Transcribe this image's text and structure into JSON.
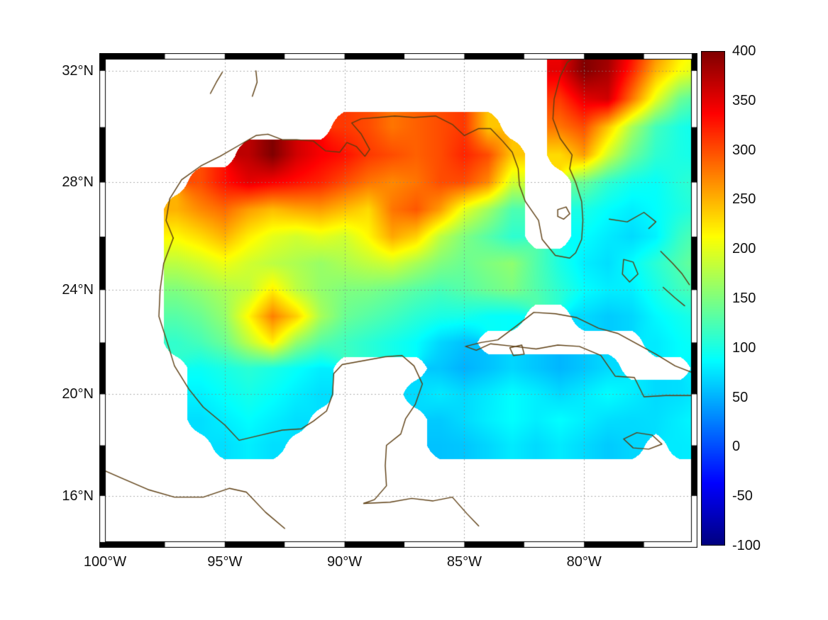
{
  "figure": {
    "background": "#ffffff",
    "frame_color": "#000000",
    "grid_color": "#828282",
    "coast_color": "#5c3d11"
  },
  "axes": {
    "lon_range": [
      -100,
      -75.5
    ],
    "lat_range": [
      14.2,
      32.4
    ],
    "x_ticks": [
      {
        "value": -100,
        "label": "100°W"
      },
      {
        "value": -95,
        "label": "95°W"
      },
      {
        "value": -90,
        "label": "90°W"
      },
      {
        "value": -85,
        "label": "85°W"
      },
      {
        "value": -80,
        "label": "80°W"
      }
    ],
    "y_ticks": [
      {
        "value": 32,
        "label": "32°N"
      },
      {
        "value": 28,
        "label": "28°N"
      },
      {
        "value": 24,
        "label": "24°N"
      },
      {
        "value": 20,
        "label": "20°N"
      },
      {
        "value": 16,
        "label": "16°N"
      }
    ]
  },
  "colorbar": {
    "min": -100,
    "max": 400,
    "colormap": "jet",
    "stops": [
      [
        0,
        0,
        0,
        128
      ],
      [
        0.125,
        0,
        0,
        255
      ],
      [
        0.375,
        0,
        255,
        255
      ],
      [
        0.625,
        255,
        255,
        0
      ],
      [
        0.875,
        255,
        0,
        0
      ],
      [
        1,
        128,
        0,
        0
      ]
    ],
    "tick_values": [
      400,
      350,
      300,
      250,
      200,
      150,
      100,
      50,
      0,
      -50,
      -100
    ],
    "tick_labels": [
      "400",
      "350",
      "300",
      "250",
      "200",
      "150",
      "100",
      "50",
      "0",
      "-50",
      "-100"
    ]
  },
  "chart_data": {
    "type": "heatmap",
    "region": "Gulf of Mexico, Caribbean and western North Atlantic",
    "value_range": [
      -100,
      400
    ],
    "lon": [
      -100,
      -99,
      -98,
      -97,
      -96,
      -95,
      -94,
      -93,
      -92,
      -91,
      -90,
      -89,
      -88,
      -87,
      -86,
      -85,
      -84,
      -83,
      -82,
      -81,
      -80,
      -79,
      -78,
      -77,
      -76,
      -75
    ],
    "lat": [
      33,
      32,
      31,
      30,
      29,
      28,
      27,
      26,
      25,
      24,
      23,
      22,
      21,
      20,
      19,
      18,
      17,
      16,
      15
    ],
    "values": [
      [
        null,
        null,
        null,
        null,
        null,
        null,
        null,
        null,
        null,
        null,
        null,
        null,
        null,
        null,
        null,
        null,
        null,
        null,
        null,
        340,
        400,
        390,
        340,
        280,
        230,
        210
      ],
      [
        null,
        null,
        null,
        null,
        null,
        null,
        null,
        null,
        null,
        null,
        null,
        null,
        null,
        null,
        null,
        null,
        null,
        null,
        null,
        350,
        400,
        380,
        320,
        250,
        210,
        190
      ],
      [
        null,
        null,
        null,
        null,
        null,
        null,
        null,
        null,
        null,
        null,
        null,
        null,
        null,
        null,
        null,
        null,
        null,
        null,
        null,
        310,
        350,
        360,
        280,
        200,
        140,
        120
      ],
      [
        null,
        null,
        null,
        null,
        null,
        null,
        null,
        null,
        null,
        null,
        310,
        300,
        280,
        290,
        300,
        310,
        240,
        null,
        null,
        280,
        300,
        240,
        170,
        120,
        100,
        90
      ],
      [
        null,
        null,
        null,
        null,
        null,
        null,
        370,
        400,
        360,
        340,
        330,
        310,
        300,
        290,
        300,
        320,
        300,
        240,
        null,
        230,
        260,
        190,
        140,
        110,
        100,
        95
      ],
      [
        null,
        null,
        null,
        null,
        300,
        330,
        350,
        340,
        330,
        320,
        300,
        280,
        270,
        280,
        300,
        300,
        270,
        190,
        null,
        null,
        140,
        110,
        95,
        90,
        105,
        115
      ],
      [
        null,
        null,
        null,
        250,
        270,
        285,
        260,
        245,
        255,
        260,
        245,
        230,
        280,
        295,
        260,
        200,
        165,
        125,
        null,
        null,
        100,
        88,
        80,
        88,
        100,
        110
      ],
      [
        null,
        null,
        null,
        215,
        230,
        250,
        220,
        200,
        190,
        200,
        190,
        215,
        255,
        235,
        180,
        150,
        130,
        110,
        null,
        null,
        88,
        78,
        70,
        82,
        115,
        135
      ],
      [
        null,
        null,
        null,
        180,
        190,
        205,
        190,
        180,
        172,
        162,
        172,
        182,
        190,
        170,
        150,
        140,
        150,
        158,
        128,
        100,
        80,
        72,
        88,
        108,
        128,
        148
      ],
      [
        null,
        null,
        null,
        150,
        160,
        172,
        182,
        220,
        180,
        160,
        150,
        148,
        140,
        130,
        122,
        130,
        140,
        148,
        128,
        108,
        88,
        80,
        80,
        98,
        118,
        128
      ],
      [
        null,
        null,
        null,
        130,
        140,
        160,
        215,
        275,
        235,
        170,
        140,
        130,
        120,
        108,
        100,
        98,
        90,
        88,
        null,
        null,
        70,
        62,
        68,
        85,
        95,
        105
      ],
      [
        null,
        null,
        null,
        112,
        122,
        140,
        180,
        220,
        160,
        130,
        118,
        108,
        98,
        88,
        68,
        58,
        null,
        null,
        null,
        null,
        null,
        null,
        null,
        78,
        88,
        95
      ],
      [
        null,
        null,
        null,
        null,
        92,
        100,
        108,
        100,
        90,
        80,
        null,
        null,
        null,
        null,
        60,
        50,
        58,
        68,
        60,
        52,
        60,
        70,
        null,
        null,
        null,
        80
      ],
      [
        null,
        null,
        null,
        null,
        82,
        90,
        98,
        90,
        80,
        72,
        null,
        null,
        null,
        70,
        78,
        70,
        78,
        88,
        80,
        70,
        78,
        88,
        80,
        70,
        72,
        80
      ],
      [
        null,
        null,
        null,
        null,
        72,
        80,
        88,
        80,
        72,
        null,
        null,
        null,
        null,
        null,
        62,
        70,
        80,
        88,
        80,
        88,
        80,
        72,
        70,
        72,
        80,
        88
      ],
      [
        null,
        null,
        null,
        null,
        null,
        72,
        80,
        72,
        null,
        null,
        null,
        null,
        null,
        null,
        58,
        60,
        68,
        78,
        70,
        78,
        70,
        62,
        68,
        null,
        78,
        80
      ],
      [
        null,
        null,
        null,
        null,
        null,
        null,
        null,
        null,
        null,
        null,
        null,
        null,
        null,
        null,
        null,
        null,
        null,
        null,
        null,
        null,
        null,
        null,
        null,
        null,
        null,
        null
      ],
      [
        null,
        null,
        null,
        null,
        null,
        null,
        null,
        null,
        null,
        null,
        null,
        null,
        null,
        null,
        null,
        null,
        null,
        null,
        null,
        null,
        null,
        null,
        null,
        null,
        null,
        null
      ],
      [
        null,
        null,
        null,
        null,
        null,
        null,
        null,
        null,
        null,
        null,
        null,
        null,
        null,
        null,
        null,
        null,
        null,
        null,
        null,
        null,
        null,
        null,
        null,
        null,
        null,
        null
      ]
    ]
  },
  "coastlines": [
    {
      "name": "us-gulf-atlantic-coast",
      "closed": false,
      "pts": [
        [
          -97.15,
          25.95
        ],
        [
          -97.45,
          26.6
        ],
        [
          -97.3,
          27.4
        ],
        [
          -96.8,
          28.1
        ],
        [
          -96.0,
          28.6
        ],
        [
          -95.2,
          28.95
        ],
        [
          -94.4,
          29.35
        ],
        [
          -93.7,
          29.7
        ],
        [
          -93.2,
          29.75
        ],
        [
          -92.6,
          29.55
        ],
        [
          -92.0,
          29.55
        ],
        [
          -91.3,
          29.5
        ],
        [
          -90.8,
          29.15
        ],
        [
          -90.2,
          29.1
        ],
        [
          -89.9,
          29.45
        ],
        [
          -89.5,
          29.3
        ],
        [
          -89.15,
          28.95
        ],
        [
          -88.95,
          29.2
        ],
        [
          -89.3,
          29.75
        ],
        [
          -89.7,
          30.15
        ],
        [
          -89.3,
          30.3
        ],
        [
          -88.6,
          30.35
        ],
        [
          -87.9,
          30.4
        ],
        [
          -87.1,
          30.35
        ],
        [
          -86.2,
          30.4
        ],
        [
          -85.5,
          30.1
        ],
        [
          -85.0,
          29.7
        ],
        [
          -84.4,
          29.95
        ],
        [
          -83.9,
          29.95
        ],
        [
          -83.4,
          29.5
        ],
        [
          -83.0,
          29.1
        ],
        [
          -82.75,
          28.5
        ],
        [
          -82.7,
          27.9
        ],
        [
          -82.45,
          27.3
        ],
        [
          -81.9,
          26.6
        ],
        [
          -81.75,
          25.9
        ],
        [
          -81.2,
          25.3
        ],
        [
          -80.6,
          25.2
        ],
        [
          -80.35,
          25.4
        ],
        [
          -80.1,
          25.9
        ],
        [
          -80.05,
          26.6
        ],
        [
          -80.1,
          27.3
        ],
        [
          -80.35,
          28.0
        ],
        [
          -80.6,
          28.5
        ],
        [
          -80.5,
          29.0
        ],
        [
          -81.0,
          29.6
        ],
        [
          -81.3,
          30.3
        ],
        [
          -81.25,
          31.0
        ],
        [
          -81.0,
          31.8
        ],
        [
          -80.7,
          32.3
        ],
        [
          -80.2,
          32.6
        ],
        [
          -79.6,
          32.9
        ],
        [
          -79.2,
          33.2
        ]
      ]
    },
    {
      "name": "mexico-yucatan-belize-coast",
      "closed": false,
      "pts": [
        [
          -97.15,
          25.95
        ],
        [
          -97.55,
          25.0
        ],
        [
          -97.7,
          24.0
        ],
        [
          -97.75,
          23.0
        ],
        [
          -97.4,
          22.0
        ],
        [
          -97.1,
          21.1
        ],
        [
          -96.5,
          20.2
        ],
        [
          -95.9,
          19.5
        ],
        [
          -95.0,
          18.8
        ],
        [
          -94.4,
          18.2
        ],
        [
          -93.5,
          18.4
        ],
        [
          -92.6,
          18.6
        ],
        [
          -91.8,
          18.65
        ],
        [
          -91.3,
          18.95
        ],
        [
          -90.75,
          19.35
        ],
        [
          -90.5,
          20.0
        ],
        [
          -90.45,
          20.8
        ],
        [
          -90.1,
          21.15
        ],
        [
          -89.2,
          21.3
        ],
        [
          -88.3,
          21.45
        ],
        [
          -87.6,
          21.5
        ],
        [
          -87.1,
          21.1
        ],
        [
          -86.75,
          20.4
        ],
        [
          -87.05,
          19.6
        ],
        [
          -87.45,
          19.05
        ],
        [
          -87.65,
          18.45
        ],
        [
          -88.25,
          18.0
        ],
        [
          -88.3,
          17.2
        ],
        [
          -88.25,
          16.4
        ],
        [
          -88.75,
          15.85
        ],
        [
          -89.2,
          15.7
        ]
      ]
    },
    {
      "name": "honduras-coast",
      "closed": false,
      "pts": [
        [
          -89.2,
          15.7
        ],
        [
          -88.1,
          15.75
        ],
        [
          -87.2,
          15.9
        ],
        [
          -86.3,
          15.8
        ],
        [
          -85.5,
          15.95
        ],
        [
          -84.9,
          15.3
        ],
        [
          -84.4,
          14.8
        ]
      ]
    },
    {
      "name": "mexico-pacific-coast",
      "closed": false,
      "pts": [
        [
          -100.5,
          17.2
        ],
        [
          -99.3,
          16.7
        ],
        [
          -98.2,
          16.25
        ],
        [
          -97.1,
          15.95
        ],
        [
          -95.9,
          15.95
        ],
        [
          -94.8,
          16.3
        ],
        [
          -94.1,
          16.15
        ],
        [
          -93.3,
          15.35
        ],
        [
          -92.5,
          14.7
        ]
      ]
    },
    {
      "name": "cuba",
      "closed": true,
      "pts": [
        [
          -84.95,
          21.85
        ],
        [
          -84.3,
          22.0
        ],
        [
          -83.6,
          22.1
        ],
        [
          -82.8,
          22.65
        ],
        [
          -82.1,
          23.15
        ],
        [
          -81.2,
          23.1
        ],
        [
          -80.3,
          22.95
        ],
        [
          -79.4,
          22.55
        ],
        [
          -78.6,
          22.35
        ],
        [
          -77.8,
          21.95
        ],
        [
          -77.0,
          21.55
        ],
        [
          -76.2,
          21.1
        ],
        [
          -75.5,
          20.85
        ],
        [
          -74.8,
          20.65
        ],
        [
          -74.15,
          20.25
        ],
        [
          -74.9,
          19.95
        ],
        [
          -75.7,
          19.95
        ],
        [
          -76.6,
          19.95
        ],
        [
          -77.5,
          19.9
        ],
        [
          -77.9,
          20.65
        ],
        [
          -78.7,
          20.7
        ],
        [
          -79.3,
          21.5
        ],
        [
          -80.2,
          21.85
        ],
        [
          -81.1,
          21.9
        ],
        [
          -82.0,
          21.75
        ],
        [
          -82.9,
          21.85
        ],
        [
          -83.9,
          21.95
        ],
        [
          -84.5,
          21.7
        ]
      ]
    },
    {
      "name": "isla-juventud",
      "closed": true,
      "pts": [
        [
          -83.1,
          21.8
        ],
        [
          -82.6,
          21.9
        ],
        [
          -82.5,
          21.55
        ],
        [
          -82.95,
          21.5
        ]
      ]
    },
    {
      "name": "jamaica",
      "closed": true,
      "pts": [
        [
          -78.35,
          18.25
        ],
        [
          -77.8,
          18.5
        ],
        [
          -77.15,
          18.4
        ],
        [
          -76.75,
          18.05
        ],
        [
          -77.3,
          17.85
        ],
        [
          -77.95,
          17.9
        ]
      ]
    },
    {
      "name": "lake-okeechobee",
      "closed": true,
      "pts": [
        [
          -81.1,
          27.0
        ],
        [
          -80.75,
          27.1
        ],
        [
          -80.6,
          26.85
        ],
        [
          -80.85,
          26.65
        ],
        [
          -81.1,
          26.75
        ]
      ]
    },
    {
      "name": "andros-island",
      "closed": true,
      "pts": [
        [
          -78.35,
          25.15
        ],
        [
          -77.95,
          25.05
        ],
        [
          -77.75,
          24.6
        ],
        [
          -78.1,
          24.3
        ],
        [
          -78.4,
          24.6
        ]
      ]
    },
    {
      "name": "grand-bahama-abaco",
      "closed": false,
      "pts": [
        [
          -78.95,
          26.65
        ],
        [
          -78.2,
          26.55
        ],
        [
          -77.5,
          26.9
        ],
        [
          -77.0,
          26.55
        ],
        [
          -77.3,
          26.3
        ]
      ]
    },
    {
      "name": "eleuthera-exuma",
      "closed": false,
      "pts": [
        [
          -76.8,
          25.45
        ],
        [
          -76.3,
          25.0
        ],
        [
          -75.9,
          24.6
        ],
        [
          -75.6,
          24.2
        ]
      ]
    },
    {
      "name": "exuma-chain",
      "closed": false,
      "pts": [
        [
          -76.7,
          24.1
        ],
        [
          -76.2,
          23.7
        ],
        [
          -75.8,
          23.4
        ]
      ]
    },
    {
      "name": "texas-river",
      "closed": false,
      "pts": [
        [
          -95.6,
          31.2
        ],
        [
          -95.35,
          31.6
        ],
        [
          -95.1,
          31.95
        ]
      ]
    },
    {
      "name": "toledo-bend",
      "closed": false,
      "pts": [
        [
          -93.85,
          31.1
        ],
        [
          -93.65,
          31.6
        ],
        [
          -93.7,
          32.0
        ]
      ]
    }
  ]
}
